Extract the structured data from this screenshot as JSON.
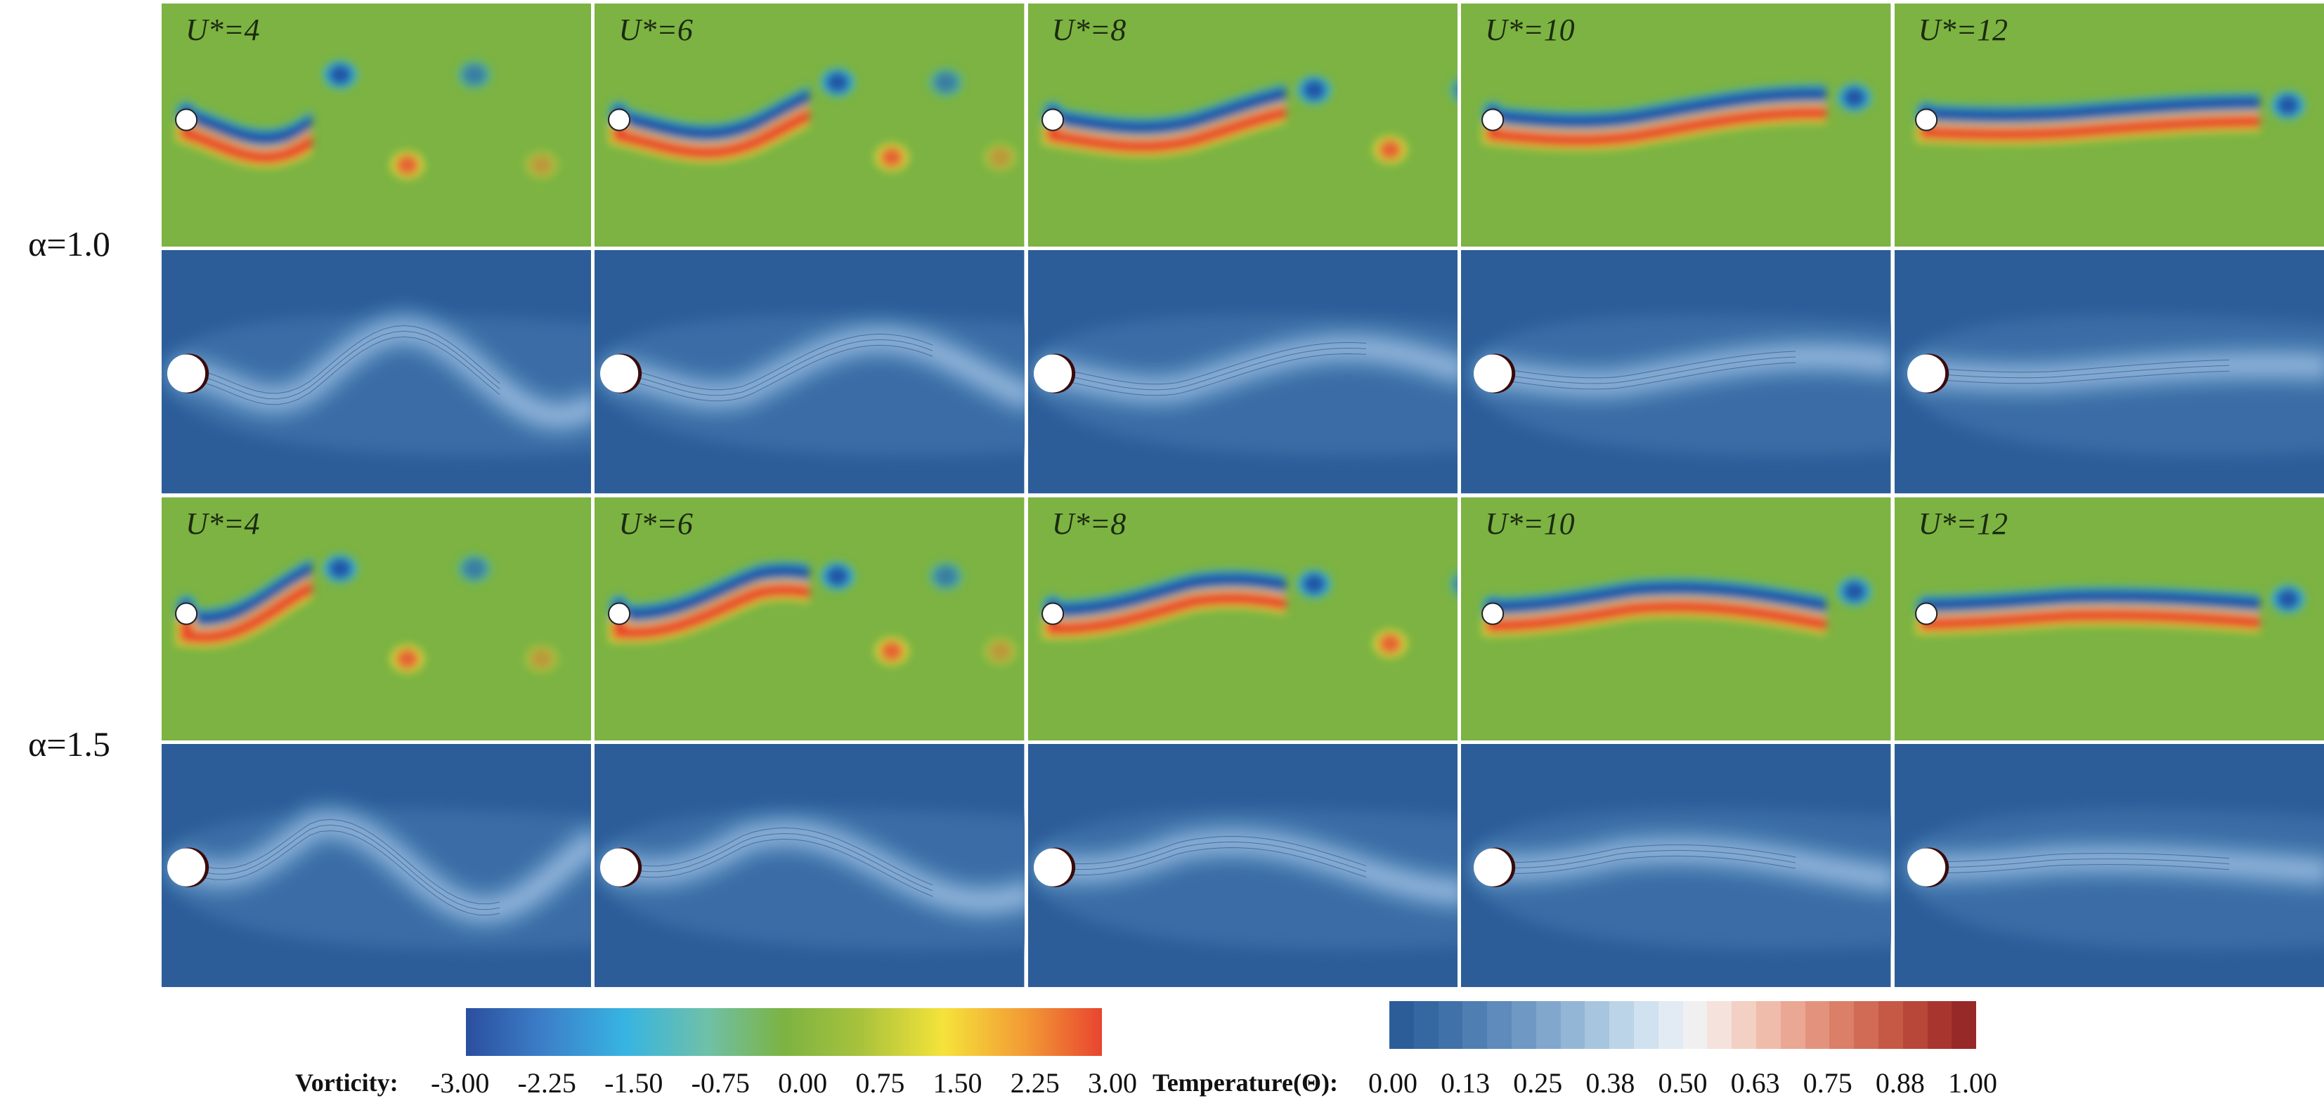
{
  "rows": [
    {
      "alpha_label": "α=1.0"
    },
    {
      "alpha_label": "α=1.5"
    }
  ],
  "columns": [
    "U*=4",
    "U*=6",
    "U*=8",
    "U*=10",
    "U*=12"
  ],
  "colors": {
    "vorticity_bg": "#7cb342",
    "vort_neg": "#2456a6",
    "vort_neg_edge": "#3bb3e0",
    "vort_pos": "#e8452f",
    "vort_pos_edge": "#f3e43a",
    "temp_bg": "#2c5d99",
    "temp_plume": "#4a7fb2",
    "temp_plume_light": "#9fc1de"
  },
  "legend_vorticity": {
    "title": "Vorticity:",
    "ticks": [
      "-3.00",
      "-2.25",
      "-1.50",
      "-0.75",
      "0.00",
      "0.75",
      "1.50",
      "2.25",
      "3.00"
    ],
    "range": [
      -3.0,
      3.0
    ]
  },
  "legend_temperature": {
    "title": "Temperature(Θ):",
    "ticks": [
      "0.00",
      "0.13",
      "0.25",
      "0.38",
      "0.50",
      "0.63",
      "0.75",
      "0.88",
      "1.00"
    ],
    "range": [
      0.0,
      1.0
    ]
  }
}
